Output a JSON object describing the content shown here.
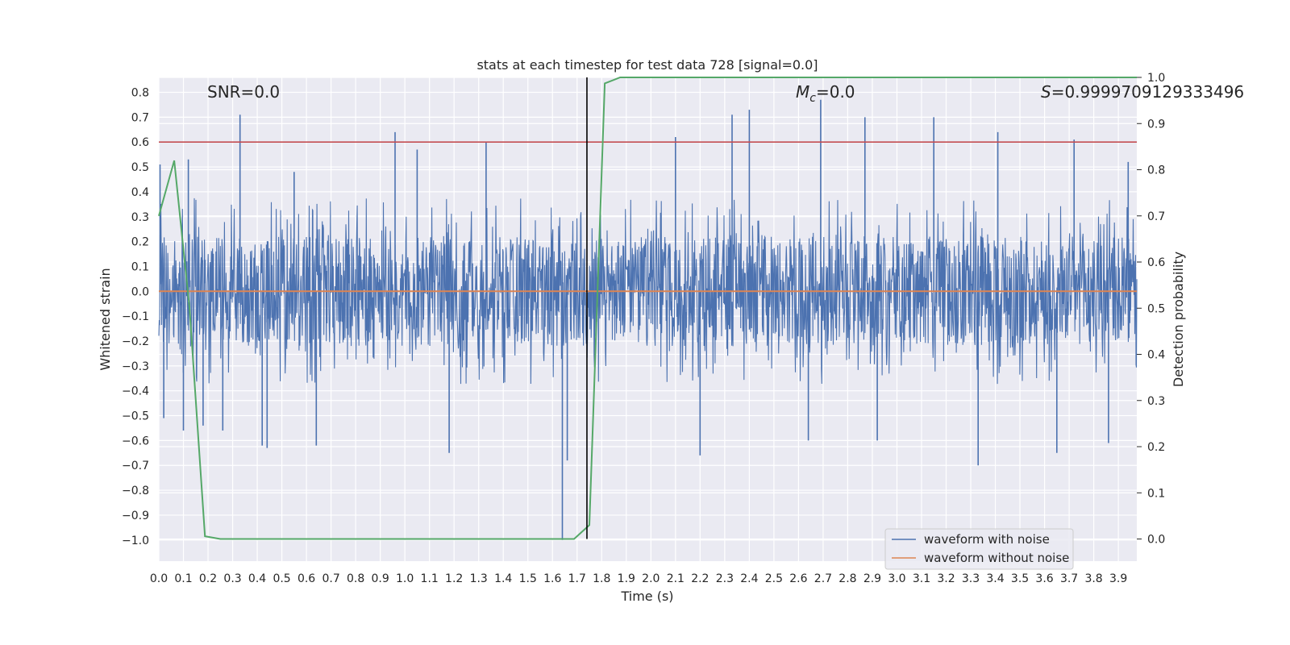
{
  "chart_data": {
    "type": "line",
    "title": "stats at each timestep for test data 728 [signal=0.0]",
    "xlabel": "Time (s)",
    "ylabel_left": "Whitened strain",
    "ylabel_right": "Detection probability",
    "xlim": [
      0.0,
      3.975
    ],
    "ylim_left": [
      -1.085,
      0.86
    ],
    "ylim_right": [
      -0.048,
      1.0
    ],
    "x_ticks": [
      "0.0",
      "0.1",
      "0.2",
      "0.3",
      "0.4",
      "0.5",
      "0.6",
      "0.7",
      "0.8",
      "0.9",
      "1.0",
      "1.1",
      "1.2",
      "1.3",
      "1.4",
      "1.5",
      "1.6",
      "1.7",
      "1.8",
      "1.9",
      "2.0",
      "2.1",
      "2.2",
      "2.3",
      "2.4",
      "2.5",
      "2.6",
      "2.7",
      "2.8",
      "2.9",
      "3.0",
      "3.1",
      "3.2",
      "3.3",
      "3.4",
      "3.5",
      "3.6",
      "3.7",
      "3.8",
      "3.9"
    ],
    "y_ticks_left": [
      "0.8",
      "0.7",
      "0.6",
      "0.5",
      "0.4",
      "0.3",
      "0.2",
      "0.1",
      "0.0",
      "−0.1",
      "−0.2",
      "−0.3",
      "−0.4",
      "−0.5",
      "−0.6",
      "−0.7",
      "−0.8",
      "−0.9",
      "−1.0"
    ],
    "y_ticks_right": [
      "1.0",
      "0.9",
      "0.8",
      "0.7",
      "0.6",
      "0.5",
      "0.4",
      "0.3",
      "0.2",
      "0.1",
      "0.0"
    ],
    "annotations": {
      "snr": "SNR=0.0",
      "mc_symbol": "M",
      "mc_sub": "c",
      "mc_value": "=0.0",
      "s_symbol": "S",
      "s_value": "=0.9999709129333496"
    },
    "threshold_line": {
      "y": 0.6,
      "color": "#c44e52"
    },
    "vertical_marker": {
      "x": 1.74,
      "color": "#000000"
    },
    "noise_amplitude_envelope": 0.22,
    "noise_spikes": [
      {
        "x": 0.005,
        "y": 0.51
      },
      {
        "x": 0.02,
        "y": -0.51
      },
      {
        "x": 0.12,
        "y": 0.53
      },
      {
        "x": 0.1,
        "y": -0.56
      },
      {
        "x": 0.18,
        "y": -0.54
      },
      {
        "x": 0.26,
        "y": -0.56
      },
      {
        "x": 0.33,
        "y": 0.71
      },
      {
        "x": 0.42,
        "y": -0.62
      },
      {
        "x": 0.44,
        "y": -0.63
      },
      {
        "x": 0.55,
        "y": 0.48
      },
      {
        "x": 0.64,
        "y": -0.62
      },
      {
        "x": 0.96,
        "y": 0.64
      },
      {
        "x": 1.05,
        "y": 0.57
      },
      {
        "x": 1.18,
        "y": -0.65
      },
      {
        "x": 1.33,
        "y": 0.6
      },
      {
        "x": 1.64,
        "y": -1.0
      },
      {
        "x": 1.66,
        "y": -0.68
      },
      {
        "x": 2.1,
        "y": 0.62
      },
      {
        "x": 2.2,
        "y": -0.66
      },
      {
        "x": 2.33,
        "y": 0.71
      },
      {
        "x": 2.4,
        "y": 0.73
      },
      {
        "x": 2.64,
        "y": -0.6
      },
      {
        "x": 2.69,
        "y": 0.77
      },
      {
        "x": 2.87,
        "y": 0.7
      },
      {
        "x": 2.92,
        "y": -0.6
      },
      {
        "x": 3.15,
        "y": 0.7
      },
      {
        "x": 3.33,
        "y": -0.7
      },
      {
        "x": 3.41,
        "y": 0.64
      },
      {
        "x": 3.65,
        "y": -0.65
      },
      {
        "x": 3.72,
        "y": 0.61
      },
      {
        "x": 3.86,
        "y": -0.61
      },
      {
        "x": 3.94,
        "y": 0.52
      }
    ],
    "series": [
      {
        "name": "waveform with noise",
        "axis": "left",
        "color": "#4c72b0",
        "kind": "noise"
      },
      {
        "name": "waveform without noise",
        "axis": "left",
        "color": "#dd8452",
        "kind": "line",
        "x": [
          0.0,
          3.975
        ],
        "y": [
          0.0,
          0.0
        ]
      },
      {
        "name": "detection probability",
        "axis": "right",
        "color": "#55a868",
        "kind": "line",
        "x": [
          0.0,
          0.0625,
          0.125,
          0.1875,
          0.25,
          0.3125,
          0.375,
          0.4375,
          0.5,
          0.5625,
          0.625,
          0.6875,
          0.75,
          0.8125,
          0.875,
          0.9375,
          1.0,
          1.0625,
          1.125,
          1.1875,
          1.25,
          1.3125,
          1.375,
          1.4375,
          1.5,
          1.5625,
          1.625,
          1.6875,
          1.75,
          1.8125,
          1.875,
          1.9375,
          2.0,
          2.5,
          3.0,
          3.5,
          3.975
        ],
        "y": [
          0.7,
          0.82,
          0.5,
          0.006,
          0.0,
          0.0,
          0.0,
          0.0,
          0.0,
          0.0,
          0.0,
          0.0,
          0.0,
          0.0,
          0.0,
          0.0,
          0.0,
          0.0,
          0.0,
          0.0,
          0.0,
          0.0,
          0.0,
          0.0,
          0.0,
          0.0,
          0.0,
          0.0,
          0.03,
          0.987,
          1.0,
          1.0,
          1.0,
          1.0,
          1.0,
          1.0,
          1.0
        ]
      }
    ],
    "legend": {
      "placement": "bottom-right",
      "entries": [
        "waveform with noise",
        "waveform without noise"
      ]
    }
  }
}
